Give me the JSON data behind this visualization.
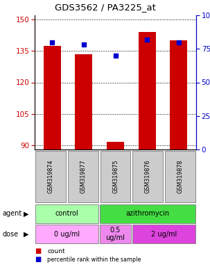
{
  "title": "GDS3562 / PA3225_at",
  "samples": [
    "GSM319874",
    "GSM319877",
    "GSM319875",
    "GSM319876",
    "GSM319878"
  ],
  "counts": [
    137.5,
    133.5,
    91.5,
    144.0,
    140.0
  ],
  "percentiles": [
    80,
    78,
    70,
    82,
    80
  ],
  "ylim_left": [
    88,
    152
  ],
  "yticks_left": [
    90,
    105,
    120,
    135,
    150
  ],
  "ylim_right": [
    0,
    100
  ],
  "yticks_right": [
    0,
    25,
    50,
    75,
    100
  ],
  "bar_color": "#cc0000",
  "dot_color": "#0000cc",
  "agent_groups": [
    {
      "label": "control",
      "cols": [
        0,
        1
      ],
      "color": "#aaffaa"
    },
    {
      "label": "azithromycin",
      "cols": [
        2,
        3,
        4
      ],
      "color": "#44dd44"
    }
  ],
  "dose_groups": [
    {
      "label": "0 ug/ml",
      "cols": [
        0,
        1
      ],
      "color": "#ffaaff"
    },
    {
      "label": "0.5\nug/ml",
      "cols": [
        2
      ],
      "color": "#ee88ee"
    },
    {
      "label": "2 ug/ml",
      "cols": [
        3,
        4
      ],
      "color": "#dd44dd"
    }
  ],
  "legend_count_color": "#cc0000",
  "legend_pct_color": "#0000cc",
  "left_axis_color": "#cc0000",
  "right_axis_color": "#0000cc",
  "gsm_bg_color": "#cccccc"
}
